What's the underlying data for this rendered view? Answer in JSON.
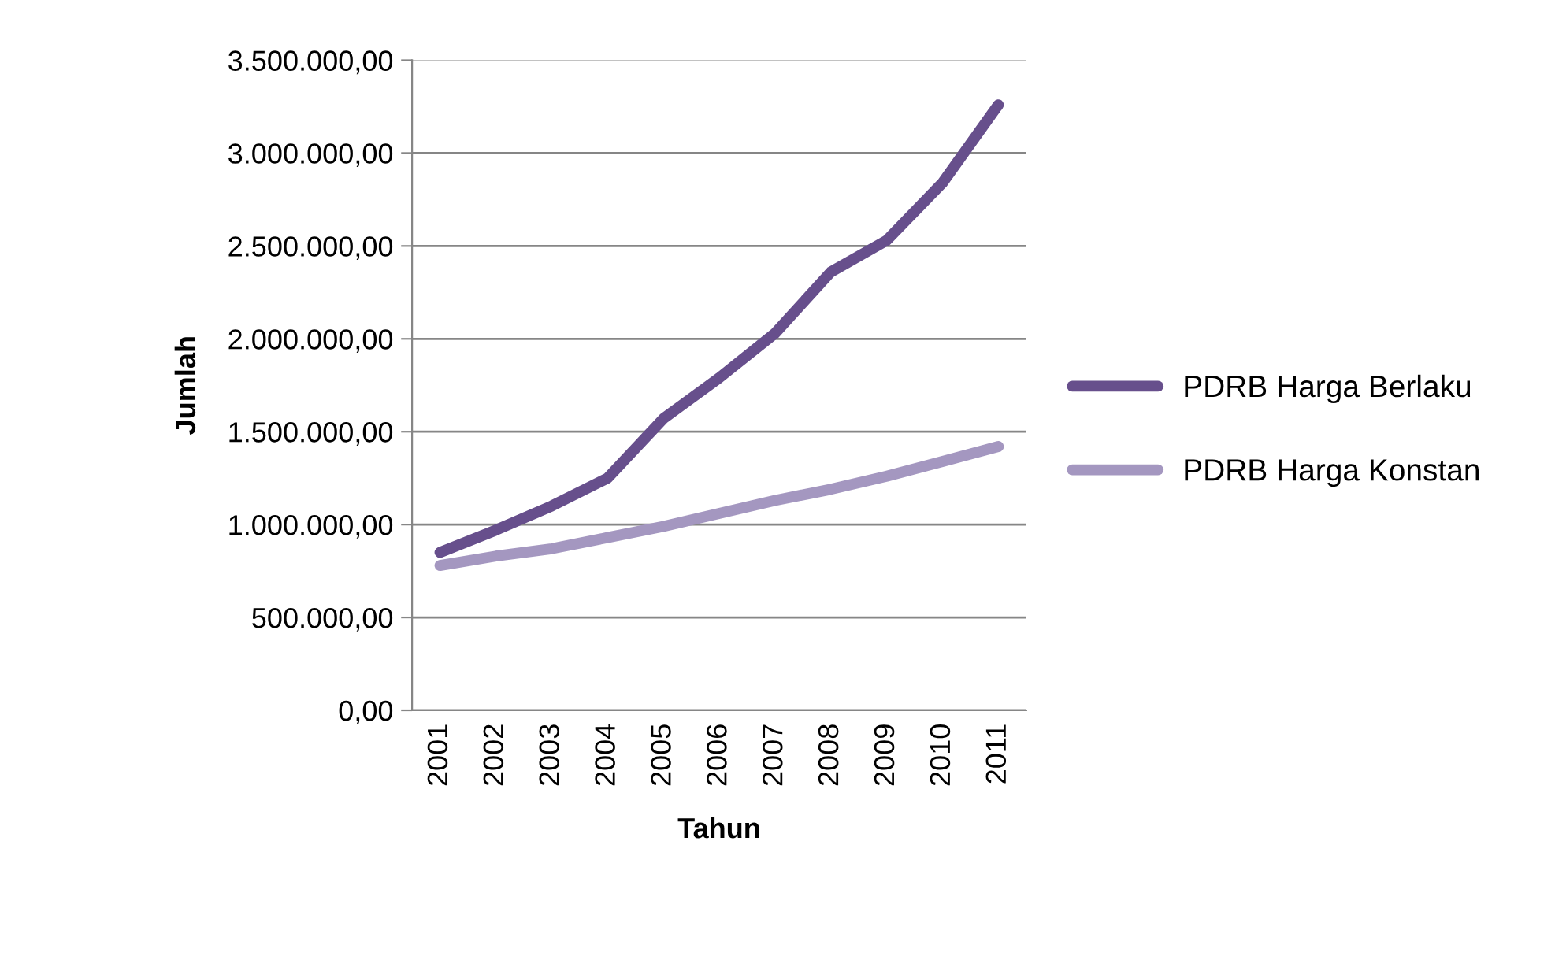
{
  "chart_data": {
    "type": "line",
    "xlabel": "Tahun",
    "ylabel": "Jumlah",
    "categories": [
      "2001",
      "2002",
      "2003",
      "2004",
      "2005",
      "2006",
      "2007",
      "2008",
      "2009",
      "2010",
      "2011"
    ],
    "series": [
      {
        "name": "PDRB Harga Berlaku",
        "color": "#674f8c",
        "values": [
          850000,
          970000,
          1100000,
          1250000,
          1570000,
          1790000,
          2030000,
          2360000,
          2530000,
          2840000,
          3260000
        ]
      },
      {
        "name": "PDRB Harga Konstan",
        "color": "#a497c0",
        "values": [
          780000,
          830000,
          870000,
          930000,
          990000,
          1060000,
          1130000,
          1190000,
          1260000,
          1340000,
          1420000
        ]
      }
    ],
    "ylim": [
      0,
      3500000
    ],
    "yticks": [
      {
        "value": 0,
        "label": "0,00"
      },
      {
        "value": 500000,
        "label": "500.000,00"
      },
      {
        "value": 1000000,
        "label": "1.000.000,00"
      },
      {
        "value": 1500000,
        "label": "1.500.000,00"
      },
      {
        "value": 2000000,
        "label": "2.000.000,00"
      },
      {
        "value": 2500000,
        "label": "2.500.000,00"
      },
      {
        "value": 3000000,
        "label": "3.000.000,00"
      },
      {
        "value": 3500000,
        "label": "3.500.000,00"
      }
    ],
    "grid": "y",
    "legend": "right",
    "marker": "none",
    "line_style": "solid"
  }
}
